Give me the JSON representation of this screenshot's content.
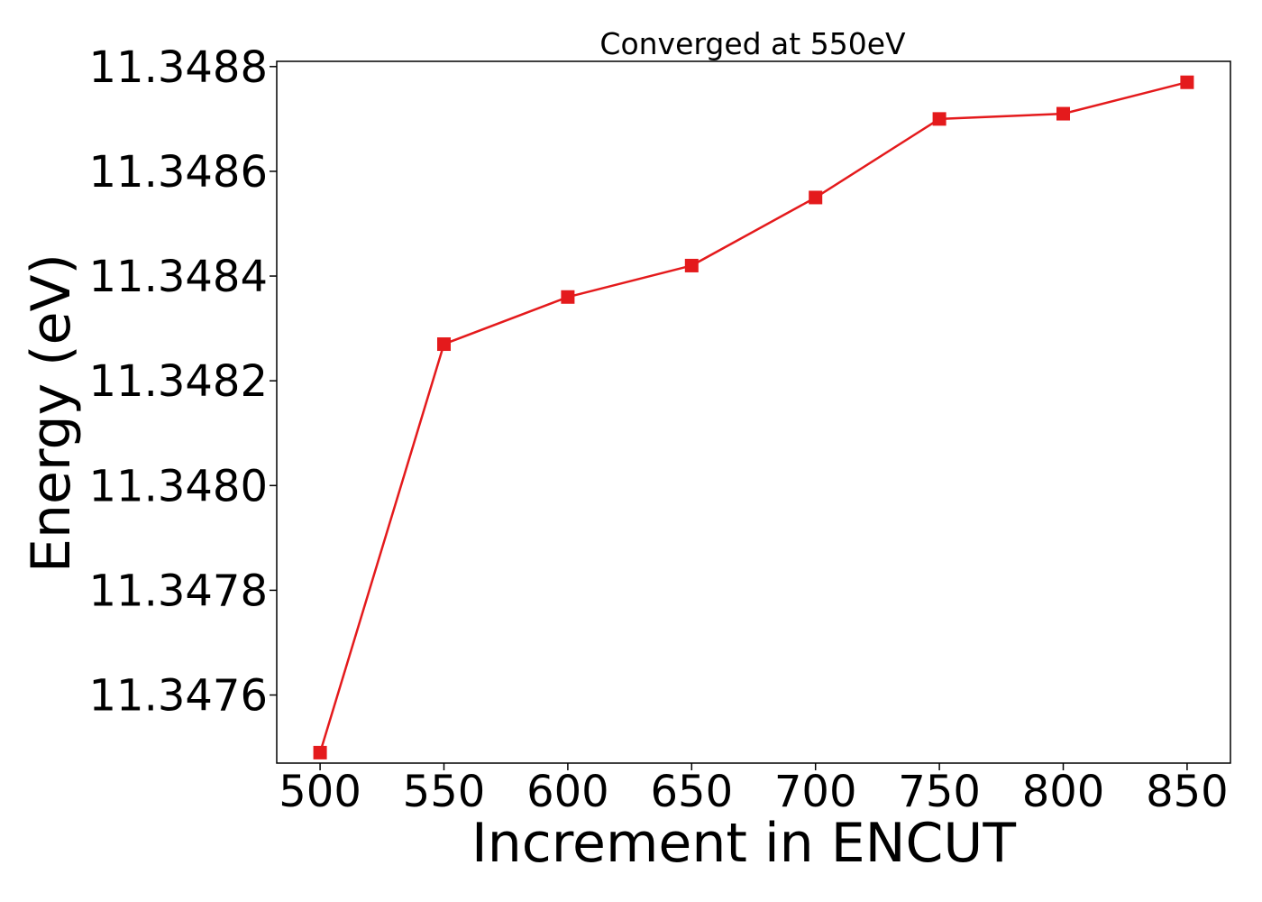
{
  "chart_data": {
    "type": "line",
    "title": "Converged at 550eV",
    "xlabel": "Increment in ENCUT",
    "ylabel": "Energy (eV)",
    "x": [
      500,
      550,
      600,
      650,
      700,
      750,
      800,
      850
    ],
    "series": [
      {
        "values": [
          11.34749,
          11.34827,
          11.34836,
          11.34842,
          11.34855,
          11.3487,
          11.34871,
          11.34877
        ],
        "color": "#e41a1c",
        "marker": "square"
      }
    ],
    "xticks": [
      500,
      550,
      600,
      650,
      700,
      750,
      800,
      850
    ],
    "xtick_labels": [
      "500",
      "550",
      "600",
      "650",
      "700",
      "750",
      "800",
      "850"
    ],
    "yticks": [
      11.3476,
      11.3478,
      11.348,
      11.3482,
      11.3484,
      11.3486,
      11.3488
    ],
    "ytick_labels": [
      "11.3476",
      "11.3478",
      "11.3480",
      "11.3482",
      "11.3484",
      "11.3486",
      "11.3488"
    ],
    "xlim": [
      482.5,
      867.5
    ],
    "ylim": [
      11.34747,
      11.34881
    ],
    "grid": false,
    "legend": "none"
  }
}
